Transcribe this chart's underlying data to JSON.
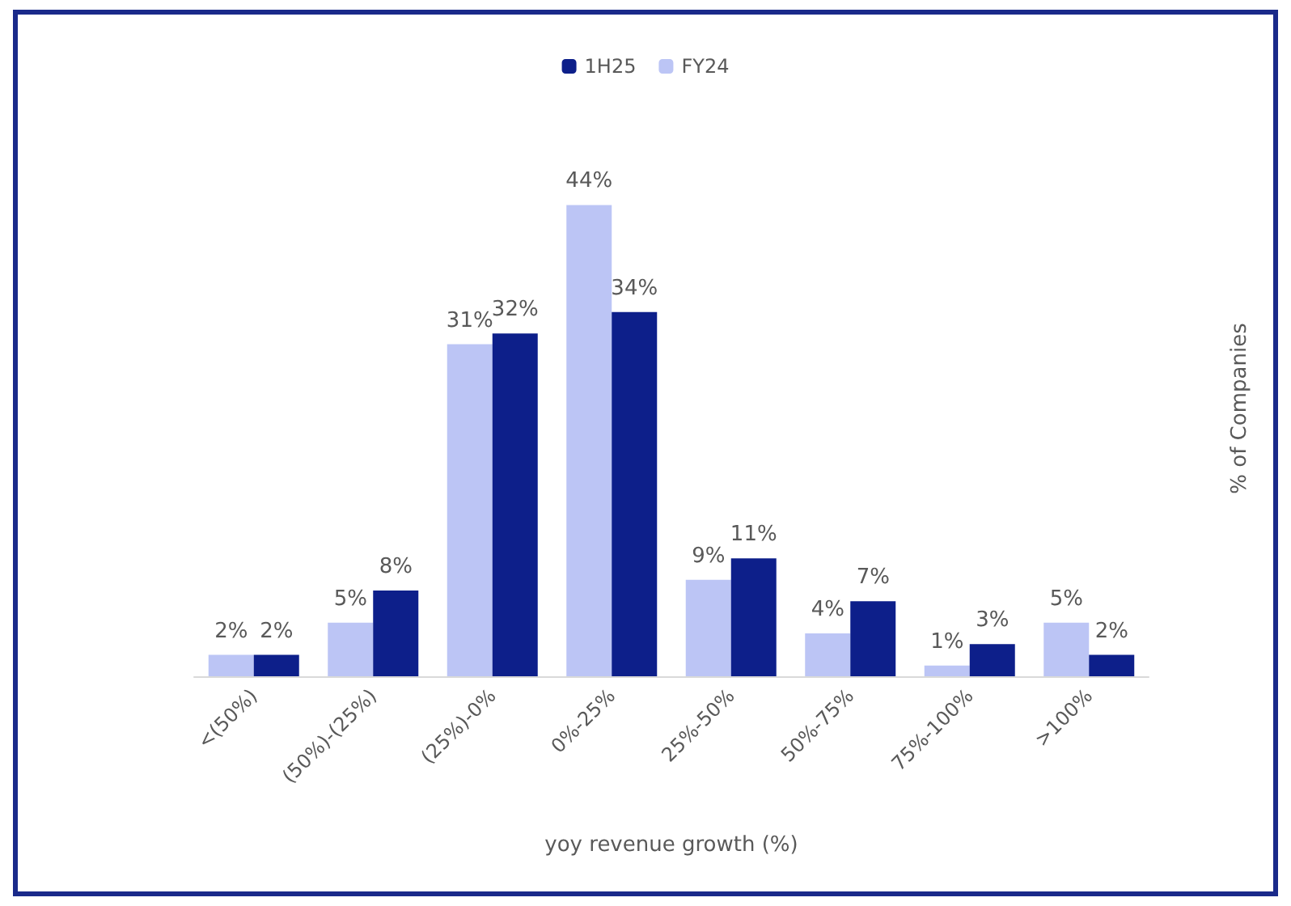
{
  "chart_data": {
    "type": "bar",
    "xlabel": "yoy revenue growth (%)",
    "ylabel": "% of Companies",
    "categories": [
      "<(50%)",
      "(50%)-(25%)",
      "(25%)-0%",
      "0%-25%",
      "25%-50%",
      "50%-75%",
      "75%-100%",
      ">100%"
    ],
    "series": [
      {
        "name": "FY24",
        "color": "#bcc5f5",
        "values": [
          2,
          5,
          31,
          44,
          9,
          4,
          1,
          5
        ],
        "value_labels": [
          "2%",
          "5%",
          "31%",
          "44%",
          "9%",
          "4%",
          "1%",
          "5%"
        ]
      },
      {
        "name": "1H25",
        "color": "#0d1f8a",
        "values": [
          2,
          8,
          32,
          34,
          11,
          7,
          3,
          2
        ],
        "value_labels": [
          "2%",
          "8%",
          "32%",
          "34%",
          "11%",
          "7%",
          "3%",
          "2%"
        ]
      }
    ],
    "legend": "top",
    "grid": false
  }
}
